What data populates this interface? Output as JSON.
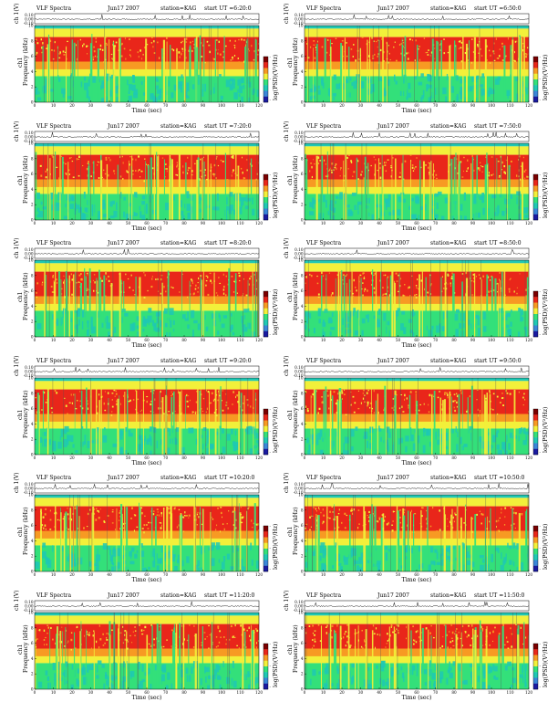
{
  "figure": {
    "heading": "VLF Spectra",
    "date": "Jun17 2007",
    "station": "station=KAG",
    "start_prefix": "start UT ="
  },
  "axes": {
    "top_ylabel": "ch 1(V)",
    "channel_label": "ch1",
    "freq_label": "Frequency (kHz)",
    "time_label": "Time (sec)",
    "colorbar_label": "log(PSD)(V²/Hz)"
  },
  "colors": {
    "background_blue": "#3a86d8",
    "low": "#1fc8b4",
    "green": "#33e07a",
    "yellow": "#f2f03a",
    "orange": "#f79a23",
    "red": "#e9261a",
    "colorbar": [
      "#7a0000",
      "#e9261a",
      "#f79a23",
      "#f2f03a",
      "#33e07a",
      "#1fc8b4",
      "#3a86d8",
      "#1a1aa0"
    ]
  },
  "chart_data": [
    {
      "type": "heatmap",
      "title": "VLF Spectra  Jun17 2007  station=KAG  start UT =6:20:0",
      "start_ut": "6:20:0",
      "xlabel": "Time (sec)",
      "ylabel": "Frequency (kHz)",
      "xlim": [
        0,
        120
      ],
      "ylim": [
        0,
        10
      ],
      "xticks": [
        0,
        10,
        20,
        30,
        40,
        50,
        60,
        70,
        80,
        90,
        100,
        110,
        120
      ],
      "yticks": [
        0,
        2,
        4,
        6,
        8,
        10
      ],
      "top_yticks": [
        "0.10",
        "0.00",
        "-0.10"
      ],
      "colorbar_ticks": [
        "-",
        "-",
        "-"
      ]
    },
    {
      "type": "heatmap",
      "title": "VLF Spectra  Jun17 2007  station=KAG  start UT =6:50:0",
      "start_ut": "6:50:0",
      "xlabel": "Time (sec)",
      "ylabel": "Frequency (kHz)",
      "xlim": [
        0,
        120
      ],
      "ylim": [
        0,
        10
      ],
      "xticks": [
        0,
        10,
        20,
        30,
        40,
        50,
        60,
        70,
        80,
        90,
        100,
        110,
        120
      ],
      "yticks": [
        0,
        2,
        4,
        6,
        8,
        10
      ],
      "top_yticks": [
        "0.10",
        "0.00",
        "-0.10"
      ],
      "colorbar_ticks": [
        "-",
        "-",
        "-"
      ]
    },
    {
      "type": "heatmap",
      "title": "VLF Spectra  Jun17 2007  station=KAG  start UT =7:20:0",
      "start_ut": "7:20:0",
      "xlabel": "Time (sec)",
      "ylabel": "Frequency (kHz)",
      "xlim": [
        0,
        120
      ],
      "ylim": [
        0,
        10
      ],
      "xticks": [
        0,
        10,
        20,
        30,
        40,
        50,
        60,
        70,
        80,
        90,
        100,
        110,
        120
      ],
      "yticks": [
        0,
        2,
        4,
        6,
        8,
        10
      ],
      "top_yticks": [
        "0.10",
        "0.00",
        "-0.10"
      ],
      "colorbar_ticks": [
        "-",
        "-",
        "-"
      ]
    },
    {
      "type": "heatmap",
      "title": "VLF Spectra  Jun17 2007  station=KAG  start UT =7:50:0",
      "start_ut": "7:50:0",
      "xlabel": "Time (sec)",
      "ylabel": "Frequency (kHz)",
      "xlim": [
        0,
        120
      ],
      "ylim": [
        0,
        10
      ],
      "xticks": [
        0,
        10,
        20,
        30,
        40,
        50,
        60,
        70,
        80,
        90,
        100,
        110,
        120
      ],
      "yticks": [
        0,
        2,
        4,
        6,
        8,
        10
      ],
      "top_yticks": [
        "0.10",
        "0.00",
        "-0.10"
      ],
      "colorbar_ticks": [
        "-",
        "-",
        "-"
      ]
    },
    {
      "type": "heatmap",
      "title": "VLF Spectra  Jun17 2007  station=KAG  start UT =8:20:0",
      "start_ut": "8:20:0",
      "xlabel": "Time (sec)",
      "ylabel": "Frequency (kHz)",
      "xlim": [
        0,
        120
      ],
      "ylim": [
        0,
        10
      ],
      "xticks": [
        0,
        10,
        20,
        30,
        40,
        50,
        60,
        70,
        80,
        90,
        100,
        110,
        120
      ],
      "yticks": [
        0,
        2,
        4,
        6,
        8,
        10
      ],
      "top_yticks": [
        "0.10",
        "0.00",
        "-0.10"
      ],
      "colorbar_ticks": [
        "-",
        "-",
        "-"
      ]
    },
    {
      "type": "heatmap",
      "title": "VLF Spectra  Jun17 2007  station=KAG  start UT =8:50:0",
      "start_ut": "8:50:0",
      "xlabel": "Time (sec)",
      "ylabel": "Frequency (kHz)",
      "xlim": [
        0,
        120
      ],
      "ylim": [
        0,
        10
      ],
      "xticks": [
        0,
        10,
        20,
        30,
        40,
        50,
        60,
        70,
        80,
        90,
        100,
        110,
        120
      ],
      "yticks": [
        0,
        2,
        4,
        6,
        8,
        10
      ],
      "top_yticks": [
        "0.10",
        "0.00",
        "-0.10"
      ],
      "colorbar_ticks": [
        "-",
        "-",
        "-"
      ]
    },
    {
      "type": "heatmap",
      "title": "VLF Spectra  Jun17 2007  station=KAG  start UT =9:20:0",
      "start_ut": "9:20:0",
      "xlabel": "Time (sec)",
      "ylabel": "Frequency (kHz)",
      "xlim": [
        0,
        120
      ],
      "ylim": [
        0,
        10
      ],
      "xticks": [
        0,
        10,
        20,
        30,
        40,
        50,
        60,
        70,
        80,
        90,
        100,
        110,
        120
      ],
      "yticks": [
        0,
        2,
        4,
        6,
        8,
        10
      ],
      "top_yticks": [
        "0.10",
        "0.00",
        "-0.10"
      ],
      "colorbar_ticks": [
        "-",
        "-",
        "-"
      ]
    },
    {
      "type": "heatmap",
      "title": "VLF Spectra  Jun17 2007  station=KAG  start UT =9:50:0",
      "start_ut": "9:50:0",
      "xlabel": "Time (sec)",
      "ylabel": "Frequency (kHz)",
      "xlim": [
        0,
        120
      ],
      "ylim": [
        0,
        10
      ],
      "xticks": [
        0,
        10,
        20,
        30,
        40,
        50,
        60,
        70,
        80,
        90,
        100,
        110,
        120
      ],
      "yticks": [
        0,
        2,
        4,
        6,
        8,
        10
      ],
      "top_yticks": [
        "0.10",
        "0.00",
        "-0.10"
      ],
      "colorbar_ticks": [
        "-",
        "-",
        "-"
      ]
    },
    {
      "type": "heatmap",
      "title": "VLF Spectra  Jun17 2007  station=KAG  start UT =10:20:0",
      "start_ut": "10:20:0",
      "xlabel": "Time (sec)",
      "ylabel": "Frequency (kHz)",
      "xlim": [
        0,
        120
      ],
      "ylim": [
        0,
        10
      ],
      "xticks": [
        0,
        10,
        20,
        30,
        40,
        50,
        60,
        70,
        80,
        90,
        100,
        110,
        120
      ],
      "yticks": [
        0,
        2,
        4,
        6,
        8,
        10
      ],
      "top_yticks": [
        "0.10",
        "0.00",
        "-0.10"
      ],
      "colorbar_ticks": [
        "-",
        "-",
        "-"
      ]
    },
    {
      "type": "heatmap",
      "title": "VLF Spectra  Jun17 2007  station=KAG  start UT =10:50:0",
      "start_ut": "10:50:0",
      "xlabel": "Time (sec)",
      "ylabel": "Frequency (kHz)",
      "xlim": [
        0,
        120
      ],
      "ylim": [
        0,
        10
      ],
      "xticks": [
        0,
        10,
        20,
        30,
        40,
        50,
        60,
        70,
        80,
        90,
        100,
        110,
        120
      ],
      "yticks": [
        0,
        2,
        4,
        6,
        8,
        10
      ],
      "top_yticks": [
        "0.10",
        "0.00",
        "-0.10"
      ],
      "colorbar_ticks": [
        "-",
        "-",
        "-"
      ]
    },
    {
      "type": "heatmap",
      "title": "VLF Spectra  Jun17 2007  station=KAG  start UT =11:20:0",
      "start_ut": "11:20:0",
      "xlabel": "Time (sec)",
      "ylabel": "Frequency (kHz)",
      "xlim": [
        0,
        120
      ],
      "ylim": [
        0,
        10
      ],
      "xticks": [
        0,
        10,
        20,
        30,
        40,
        50,
        60,
        70,
        80,
        90,
        100,
        110,
        120
      ],
      "yticks": [
        0,
        2,
        4,
        6,
        8,
        10
      ],
      "top_yticks": [
        "0.10",
        "0.00",
        "-0.10"
      ],
      "colorbar_ticks": [
        "-",
        "-",
        "-"
      ]
    },
    {
      "type": "heatmap",
      "title": "VLF Spectra  Jun17 2007  station=KAG  start UT =11:50:0",
      "start_ut": "11:50:0",
      "xlabel": "Time (sec)",
      "ylabel": "Frequency (kHz)",
      "xlim": [
        0,
        120
      ],
      "ylim": [
        0,
        10
      ],
      "xticks": [
        0,
        10,
        20,
        30,
        40,
        50,
        60,
        70,
        80,
        90,
        100,
        110,
        120
      ],
      "yticks": [
        0,
        2,
        4,
        6,
        8,
        10
      ],
      "top_yticks": [
        "0.10",
        "0.00",
        "-0.10"
      ],
      "colorbar_ticks": [
        "-",
        "-",
        "-"
      ]
    }
  ]
}
